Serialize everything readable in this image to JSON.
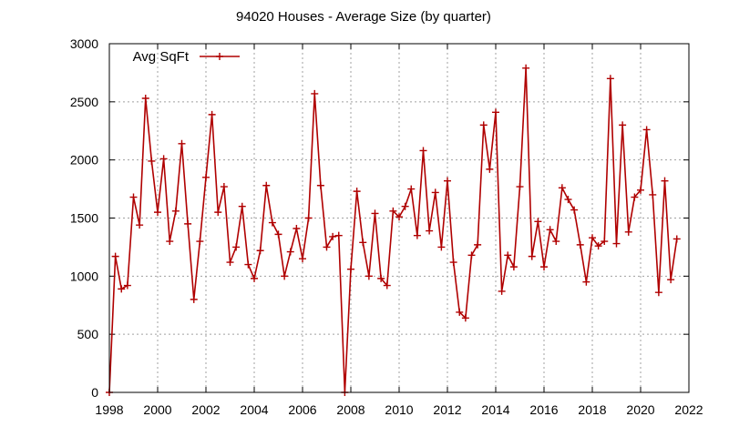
{
  "chart_data": {
    "type": "line",
    "title": "94020 Houses - Average Size (by quarter)",
    "xlabel": "",
    "ylabel": "",
    "xlim": [
      1998,
      2022
    ],
    "ylim": [
      0,
      3000
    ],
    "xticks": [
      1998,
      2000,
      2002,
      2004,
      2006,
      2008,
      2010,
      2012,
      2014,
      2016,
      2018,
      2020,
      2022
    ],
    "yticks": [
      0,
      500,
      1000,
      1500,
      2000,
      2500,
      3000
    ],
    "grid": true,
    "legend": "top-left",
    "series": [
      {
        "name": "Avg SqFt",
        "color": "#b00000",
        "marker": "plus",
        "x": [
          1998.0,
          1998.25,
          1998.5,
          1998.75,
          1999.0,
          1999.25,
          1999.5,
          1999.75,
          2000.0,
          2000.25,
          2000.5,
          2000.75,
          2001.0,
          2001.25,
          2001.5,
          2001.75,
          2002.0,
          2002.25,
          2002.5,
          2002.75,
          2003.0,
          2003.25,
          2003.5,
          2003.75,
          2004.0,
          2004.25,
          2004.5,
          2004.75,
          2005.0,
          2005.25,
          2005.5,
          2005.75,
          2006.0,
          2006.25,
          2006.5,
          2006.75,
          2007.0,
          2007.25,
          2007.5,
          2007.75,
          2008.0,
          2008.25,
          2008.5,
          2008.75,
          2009.0,
          2009.25,
          2009.5,
          2009.75,
          2010.0,
          2010.25,
          2010.5,
          2010.75,
          2011.0,
          2011.25,
          2011.5,
          2011.75,
          2012.0,
          2012.25,
          2012.5,
          2012.75,
          2013.0,
          2013.25,
          2013.5,
          2013.75,
          2014.0,
          2014.25,
          2014.5,
          2014.75,
          2015.0,
          2015.25,
          2015.5,
          2015.75,
          2016.0,
          2016.25,
          2016.5,
          2016.75,
          2017.0,
          2017.25,
          2017.5,
          2017.75,
          2018.0,
          2018.25,
          2018.5,
          2018.75,
          2019.0,
          2019.25,
          2019.5,
          2019.75,
          2020.0,
          2020.25,
          2020.5,
          2020.75,
          2021.0,
          2021.25,
          2021.5
        ],
        "y": [
          0,
          1170,
          890,
          920,
          1680,
          1440,
          2530,
          1990,
          1550,
          2010,
          1300,
          1560,
          2140,
          1450,
          800,
          1300,
          1850,
          2390,
          1550,
          1770,
          1120,
          1250,
          1600,
          1100,
          980,
          1220,
          1780,
          1460,
          1360,
          1000,
          1210,
          1410,
          1150,
          1500,
          2570,
          1780,
          1250,
          1340,
          1350,
          0,
          1060,
          1730,
          1290,
          1000,
          1540,
          980,
          920,
          1560,
          1510,
          1600,
          1750,
          1350,
          2080,
          1390,
          1720,
          1250,
          1820,
          1120,
          690,
          640,
          1180,
          1270,
          2300,
          1920,
          2410,
          870,
          1180,
          1080,
          1770,
          2790,
          1170,
          1470,
          1080,
          1400,
          1300,
          1760,
          1660,
          1570,
          1270,
          950,
          1330,
          1260,
          1300,
          2700,
          1280,
          2300,
          1380,
          1680,
          1740,
          2260,
          1700,
          860,
          1820,
          970,
          1320
        ]
      }
    ]
  }
}
